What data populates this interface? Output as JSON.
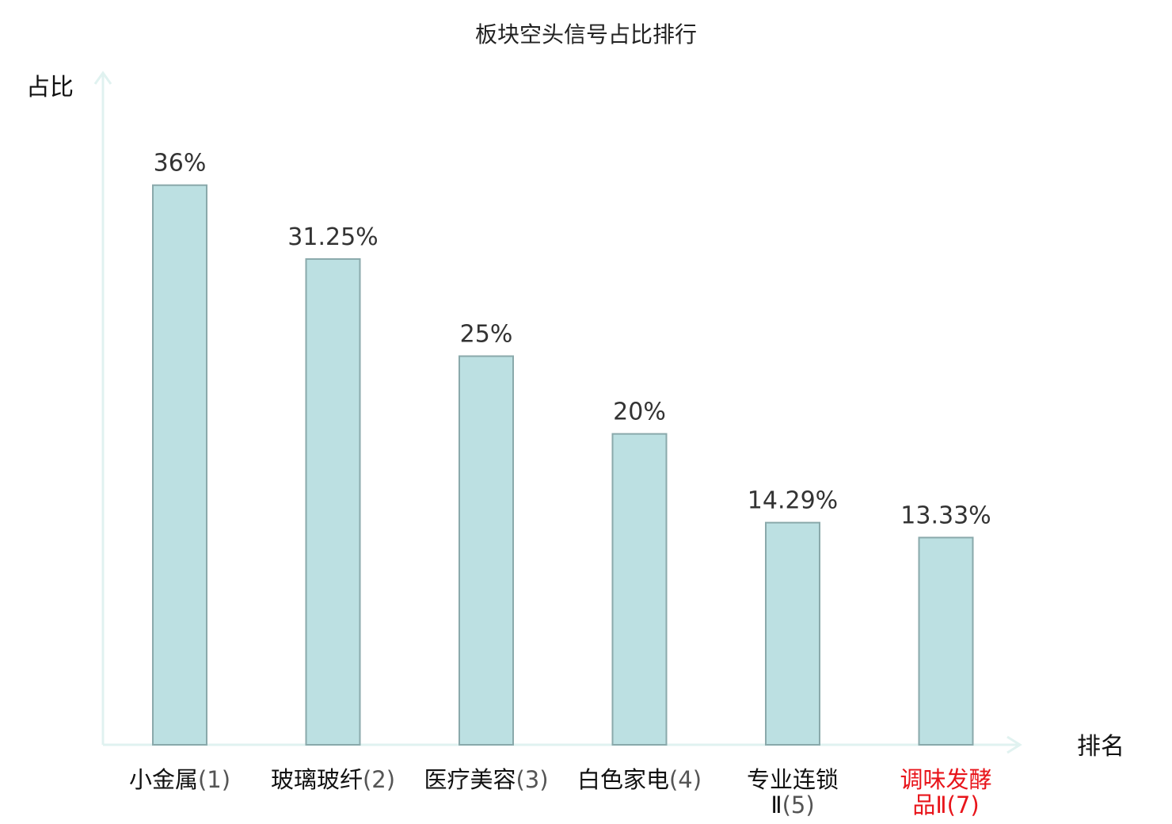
{
  "chart_data": {
    "type": "bar",
    "title": "板块空头信号占比排行",
    "ylabel": "占比",
    "xlabel": "排名",
    "ylim": [
      0,
      42
    ],
    "grid": false,
    "categories": [
      {
        "name": "小金属",
        "rank": "(1)"
      },
      {
        "name": "玻璃玻纤",
        "rank": "(2)"
      },
      {
        "name": "医疗美容",
        "rank": "(3)"
      },
      {
        "name": "白色家电",
        "rank": "(4)"
      },
      {
        "name": "专业连锁",
        "name_line2": "Ⅱ",
        "rank": "(5)"
      },
      {
        "name": "调味发酵",
        "name_line2": "品Ⅱ",
        "rank": "(7)",
        "highlight": true
      }
    ],
    "values": [
      36,
      31.25,
      25,
      20,
      14.29,
      13.33
    ],
    "value_labels": [
      "36%",
      "31.25%",
      "25%",
      "20%",
      "14.29%",
      "13.33%"
    ],
    "colors": {
      "bar_fill": "#bce0e2",
      "bar_stroke": "#8aa9ab",
      "axis": "#e0f2f0",
      "highlight_text": "#e8151b"
    }
  }
}
